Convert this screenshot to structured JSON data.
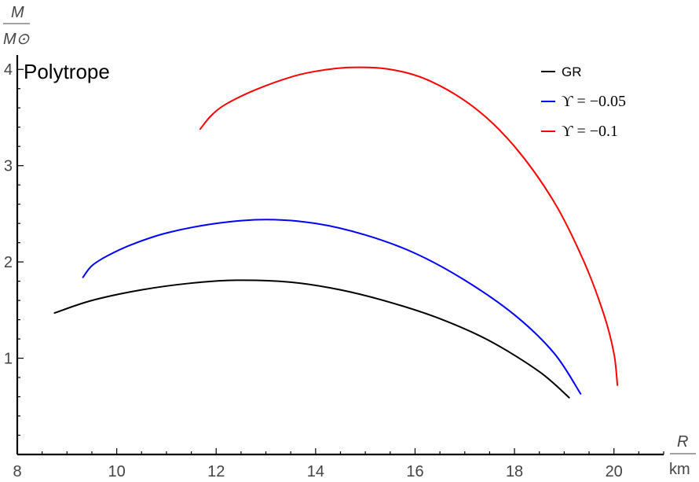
{
  "chart_data": {
    "type": "line",
    "title": "Polytrope",
    "xlabel": {
      "symbol": "R",
      "unit": "km"
    },
    "ylabel": {
      "numerator": "M",
      "denominator": "M⊙"
    },
    "xlim": [
      8,
      21
    ],
    "ylim": [
      0,
      4.1
    ],
    "xticks": [
      8,
      10,
      12,
      14,
      16,
      18,
      20
    ],
    "yticks": [
      1,
      2,
      3,
      4
    ],
    "legend_position": "top-right",
    "series": [
      {
        "name": "GR",
        "color": "#000000",
        "points": [
          [
            8.75,
            1.47
          ],
          [
            9.5,
            1.6
          ],
          [
            10.5,
            1.71
          ],
          [
            11.5,
            1.78
          ],
          [
            12.4,
            1.81
          ],
          [
            13.5,
            1.79
          ],
          [
            14.5,
            1.71
          ],
          [
            15.5,
            1.58
          ],
          [
            16.5,
            1.41
          ],
          [
            17.5,
            1.18
          ],
          [
            18.5,
            0.86
          ],
          [
            19.1,
            0.59
          ]
        ]
      },
      {
        "name": "ϒ = −0.05",
        "color": "#0000ff",
        "points": [
          [
            9.32,
            1.84
          ],
          [
            9.5,
            1.96
          ],
          [
            9.8,
            2.06
          ],
          [
            10.3,
            2.18
          ],
          [
            11.0,
            2.3
          ],
          [
            12.0,
            2.4
          ],
          [
            13.0,
            2.44
          ],
          [
            14.0,
            2.4
          ],
          [
            15.0,
            2.28
          ],
          [
            16.0,
            2.09
          ],
          [
            17.0,
            1.81
          ],
          [
            18.0,
            1.45
          ],
          [
            18.8,
            1.05
          ],
          [
            19.33,
            0.63
          ]
        ]
      },
      {
        "name": "ϒ = −0.1",
        "color": "#ff0000",
        "points": [
          [
            11.68,
            3.38
          ],
          [
            11.9,
            3.52
          ],
          [
            12.2,
            3.64
          ],
          [
            12.8,
            3.79
          ],
          [
            13.5,
            3.92
          ],
          [
            14.0,
            3.98
          ],
          [
            14.7,
            4.02
          ],
          [
            15.5,
            4.0
          ],
          [
            16.3,
            3.88
          ],
          [
            17.2,
            3.6
          ],
          [
            18.0,
            3.2
          ],
          [
            18.8,
            2.62
          ],
          [
            19.4,
            2.0
          ],
          [
            19.8,
            1.45
          ],
          [
            20.0,
            1.05
          ],
          [
            20.07,
            0.72
          ]
        ]
      }
    ]
  }
}
